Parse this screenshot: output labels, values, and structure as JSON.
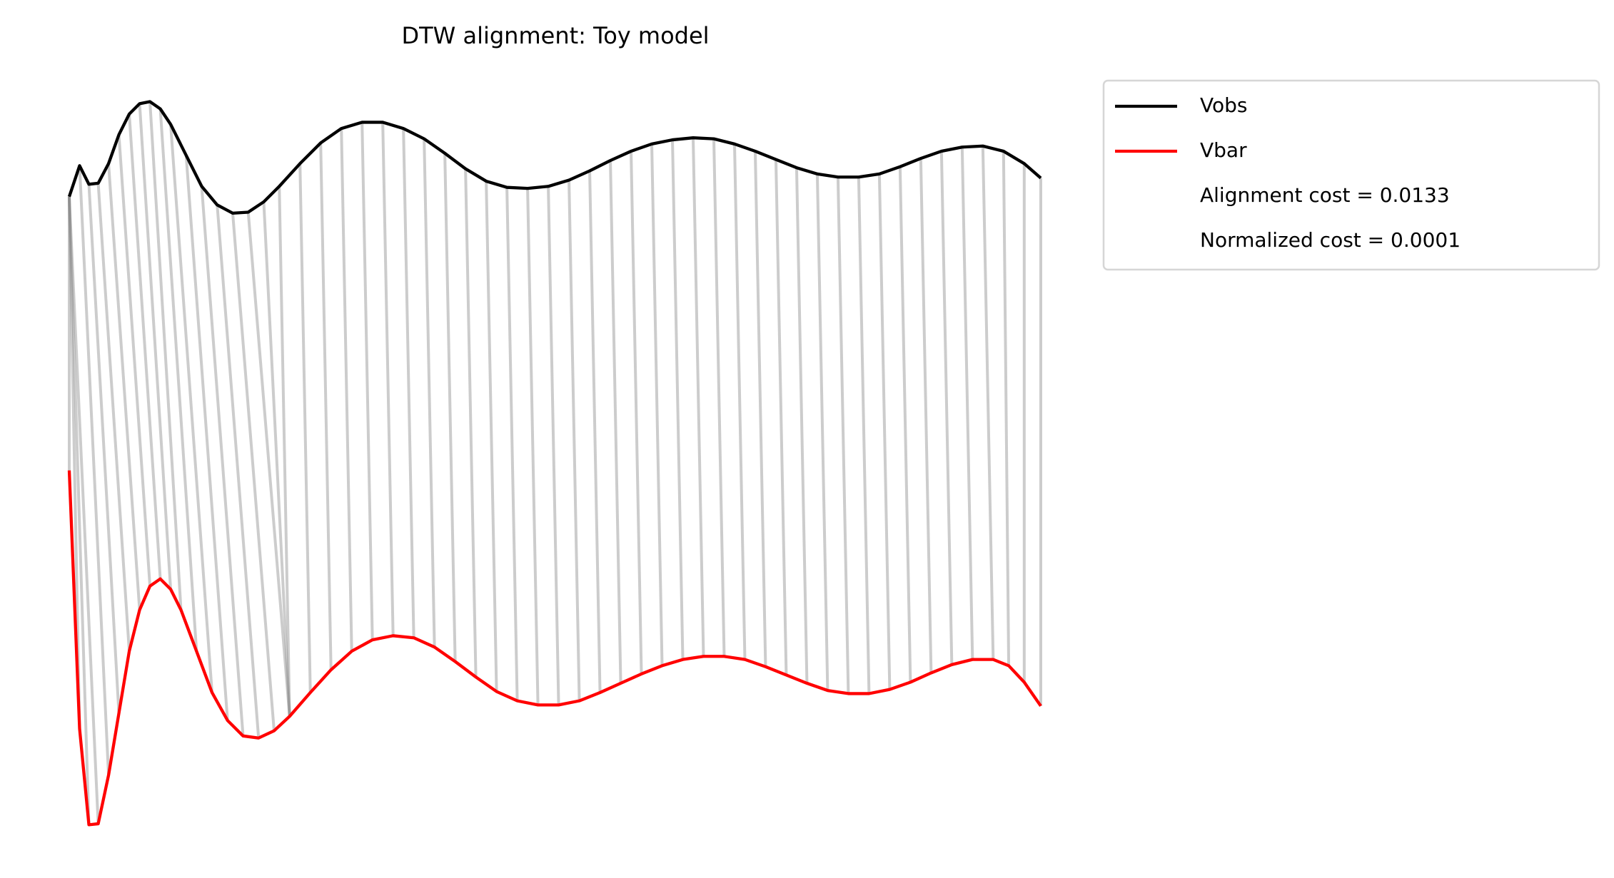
{
  "chart_data": {
    "type": "line",
    "title": "DTW alignment: Toy model",
    "xlim": [
      0,
      939
    ],
    "ylim": [
      0.45,
      7.72
    ],
    "axis": false,
    "legend": "outside",
    "series": [
      {
        "name": "Vobs",
        "color": "#000000",
        "x": [
          0,
          10,
          19,
          28,
          38,
          48,
          58,
          68,
          78,
          88,
          98,
          113,
          128,
          143,
          158,
          173,
          188,
          203,
          223,
          243,
          263,
          283,
          303,
          323,
          343,
          363,
          383,
          403,
          423,
          443,
          463,
          483,
          503,
          523,
          543,
          563,
          583,
          603,
          623,
          643,
          663,
          683,
          703,
          723,
          743,
          763,
          783,
          803,
          823,
          843,
          863,
          883,
          903,
          923,
          939
        ],
        "values": [
          6.7,
          7.0,
          6.82,
          6.83,
          7.02,
          7.3,
          7.5,
          7.6,
          7.62,
          7.55,
          7.4,
          7.1,
          6.8,
          6.62,
          6.54,
          6.55,
          6.65,
          6.8,
          7.02,
          7.22,
          7.36,
          7.42,
          7.42,
          7.36,
          7.26,
          7.12,
          6.97,
          6.85,
          6.79,
          6.78,
          6.8,
          6.86,
          6.95,
          7.05,
          7.14,
          7.21,
          7.25,
          7.27,
          7.26,
          7.21,
          7.14,
          7.06,
          6.98,
          6.92,
          6.89,
          6.89,
          6.92,
          6.99,
          7.07,
          7.14,
          7.18,
          7.19,
          7.14,
          7.02,
          6.88
        ]
      },
      {
        "name": "Vbar",
        "color": "#ff0000",
        "x": [
          0,
          10,
          19,
          28,
          38,
          48,
          58,
          68,
          78,
          88,
          98,
          108,
          123,
          138,
          153,
          168,
          183,
          198,
          213,
          233,
          253,
          273,
          293,
          313,
          333,
          353,
          373,
          393,
          413,
          433,
          453,
          473,
          493,
          513,
          533,
          553,
          573,
          593,
          613,
          633,
          653,
          673,
          693,
          713,
          733,
          753,
          773,
          793,
          813,
          833,
          853,
          873,
          893,
          908,
          923,
          939
        ],
        "values": [
          4.05,
          1.55,
          0.62,
          0.63,
          1.1,
          1.7,
          2.3,
          2.7,
          2.93,
          3.0,
          2.9,
          2.7,
          2.3,
          1.9,
          1.63,
          1.48,
          1.46,
          1.53,
          1.67,
          1.9,
          2.12,
          2.3,
          2.41,
          2.45,
          2.43,
          2.34,
          2.2,
          2.05,
          1.91,
          1.82,
          1.78,
          1.78,
          1.82,
          1.9,
          1.99,
          2.08,
          2.16,
          2.22,
          2.25,
          2.25,
          2.22,
          2.15,
          2.07,
          1.99,
          1.92,
          1.89,
          1.89,
          1.93,
          2.0,
          2.09,
          2.17,
          2.22,
          2.22,
          2.16,
          2.0,
          1.77
        ]
      }
    ],
    "alignment": [
      [
        0,
        0
      ],
      [
        0,
        1
      ],
      [
        0,
        2
      ],
      [
        0,
        3
      ],
      [
        1,
        4
      ],
      [
        2,
        5
      ],
      [
        3,
        6
      ],
      [
        4,
        7
      ],
      [
        5,
        8
      ],
      [
        6,
        9
      ],
      [
        7,
        10
      ],
      [
        8,
        11
      ],
      [
        9,
        12
      ],
      [
        10,
        13
      ],
      [
        11,
        14
      ],
      [
        12,
        15
      ],
      [
        13,
        16
      ],
      [
        14,
        17
      ],
      [
        15,
        18
      ],
      [
        16,
        18
      ],
      [
        17,
        18
      ],
      [
        18,
        19
      ],
      [
        19,
        20
      ],
      [
        20,
        21
      ],
      [
        21,
        22
      ],
      [
        22,
        23
      ],
      [
        23,
        24
      ],
      [
        24,
        25
      ],
      [
        25,
        26
      ],
      [
        26,
        27
      ],
      [
        27,
        28
      ],
      [
        28,
        29
      ],
      [
        29,
        30
      ],
      [
        30,
        31
      ],
      [
        31,
        32
      ],
      [
        32,
        33
      ],
      [
        33,
        34
      ],
      [
        34,
        35
      ],
      [
        35,
        36
      ],
      [
        36,
        37
      ],
      [
        37,
        38
      ],
      [
        38,
        39
      ],
      [
        39,
        40
      ],
      [
        40,
        41
      ],
      [
        41,
        42
      ],
      [
        42,
        43
      ],
      [
        43,
        44
      ],
      [
        44,
        45
      ],
      [
        45,
        46
      ],
      [
        46,
        47
      ],
      [
        47,
        48
      ],
      [
        48,
        49
      ],
      [
        49,
        50
      ],
      [
        50,
        51
      ],
      [
        51,
        52
      ],
      [
        52,
        53
      ],
      [
        53,
        54
      ],
      [
        54,
        55
      ]
    ],
    "alignment_color": "#808080",
    "legend_notes": [
      "Alignment cost = 0.0133",
      "Normalized cost = 0.0001"
    ]
  }
}
